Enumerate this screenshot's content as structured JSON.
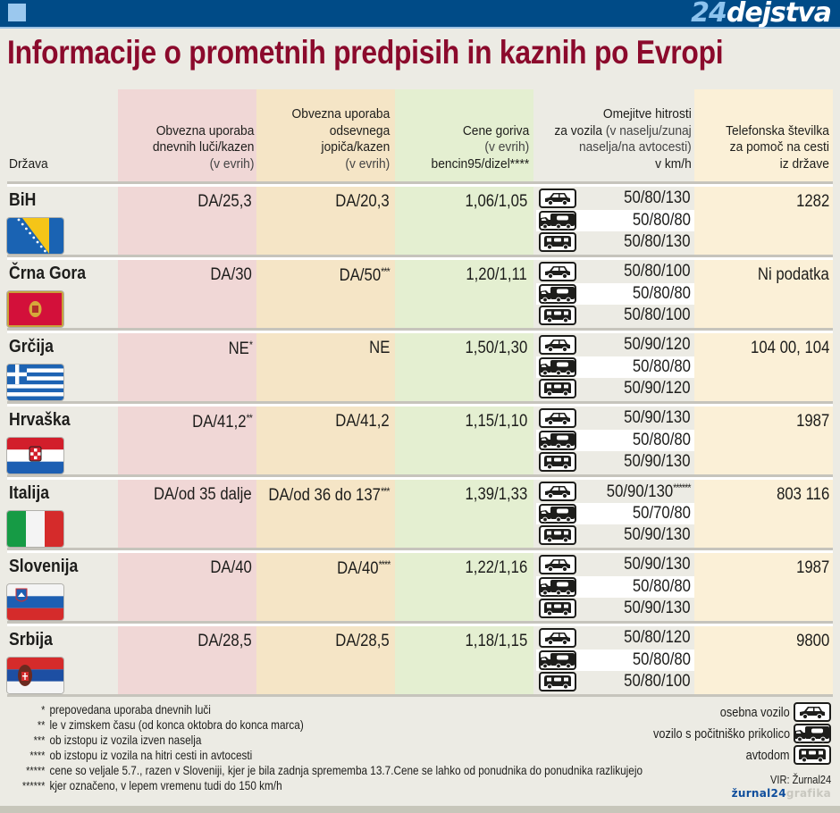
{
  "header": {
    "brand_number": "24",
    "brand_word": "dejstva",
    "title": "Informacije o prometnih predpisih in kaznih po Evropi"
  },
  "colors": {
    "topbar": "#004b87",
    "title": "#8b0a2c",
    "lights_col": "#f0d7d6",
    "vest_col": "#f5e5c6",
    "fuel_col": "#e4efd1",
    "phone_col": "#fbf0d7"
  },
  "columns": {
    "country": "Država",
    "lights": {
      "line1": "Obvezna uporaba",
      "line2": "dnevnih luči/kazen",
      "line3": "(v evrih)"
    },
    "vest": {
      "line1": "Obvezna uporaba",
      "line2": "odsevnega",
      "line3": "jopiča/kazen",
      "line4": "(v evrih)"
    },
    "fuel": {
      "line1": "Cene goriva",
      "line2": "(v evrih)",
      "line3": "bencin95/dizel****"
    },
    "speed": {
      "line1": "Omejitve hitrosti",
      "line2a": "za vozila",
      "line2b": " (v naselju/zunaj",
      "line3": "naselja/na avtocesti)",
      "line4": "v km/h"
    },
    "phone": {
      "line1": "Telefonska številka",
      "line2": "za pomoč na cesti",
      "line3": "iz države"
    }
  },
  "rows": [
    {
      "country": "BiH",
      "flag": "bosnia",
      "lights": "DA/25,3",
      "vest": "DA/20,3",
      "fuel": "1,06/1,05",
      "speed": {
        "car": "50/80/130",
        "caravan": "50/80/80",
        "motorhome": "50/80/130"
      },
      "phone": "1282"
    },
    {
      "country": "Črna Gora",
      "flag": "montenegro",
      "lights": "DA/30",
      "vest": "DA/50***",
      "fuel": "1,20/1,11",
      "speed": {
        "car": "50/80/100",
        "caravan": "50/80/80",
        "motorhome": "50/80/100"
      },
      "phone": "Ni podatka"
    },
    {
      "country": "Grčija",
      "flag": "greece",
      "lights": "NE*",
      "vest": "NE",
      "fuel": "1,50/1,30",
      "speed": {
        "car": "50/90/120",
        "caravan": "50/80/80",
        "motorhome": "50/90/120"
      },
      "phone": "104 00, 104"
    },
    {
      "country": "Hrvaška",
      "flag": "croatia",
      "lights": "DA/41,2**",
      "vest": "DA/41,2",
      "fuel": "1,15/1,10",
      "speed": {
        "car": "50/90/130",
        "caravan": "50/80/80",
        "motorhome": "50/90/130"
      },
      "phone": "1987"
    },
    {
      "country": "Italija",
      "flag": "italy",
      "lights": "DA/od 35 dalje",
      "vest": "DA/od 36 do 137***",
      "fuel": "1,39/1,33",
      "speed": {
        "car": "50/90/130******",
        "caravan": "50/70/80",
        "motorhome": "50/90/130"
      },
      "phone": "803 116"
    },
    {
      "country": "Slovenija",
      "flag": "slovenia",
      "lights": "DA/40",
      "vest": "DA/40****",
      "fuel": "1,22/1,16",
      "speed": {
        "car": "50/90/130",
        "caravan": "50/80/80",
        "motorhome": "50/90/130"
      },
      "phone": "1987"
    },
    {
      "country": "Srbija",
      "flag": "serbia",
      "lights": "DA/28,5",
      "vest": "DA/28,5",
      "fuel": "1,18/1,15",
      "speed": {
        "car": "50/80/120",
        "caravan": "50/80/80",
        "motorhome": "50/80/100"
      },
      "phone": "9800"
    }
  ],
  "footnotes": [
    {
      "mark": "*",
      "text": "prepovedana uporaba dnevnih luči"
    },
    {
      "mark": "**",
      "text": "le v zimskem času (od konca oktobra do konca marca)"
    },
    {
      "mark": "***",
      "text": "ob izstopu iz vozila izven naselja"
    },
    {
      "mark": "****",
      "text": "ob izstopu iz vozila na hitri cesti in avtocesti"
    },
    {
      "mark": "*****",
      "text": "cene so veljale 5.7., razen v Sloveniji, kjer je bila zadnja sprememba 13.7.Cene se lahko od ponudnika do ponudnika razlikujejo"
    },
    {
      "mark": "******",
      "text": "kjer označeno, v lepem vremenu tudi do 150 km/h"
    }
  ],
  "legend": {
    "car": "osebna vozilo",
    "caravan": "vozilo s počitniško prikolico",
    "motorhome": "avtodom"
  },
  "source": "VIR: Žurnal24",
  "credit": {
    "a": "žurnal24",
    "b": "grafika"
  }
}
